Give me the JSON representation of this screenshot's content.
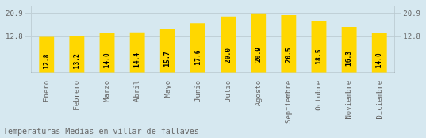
{
  "chart_data": {
    "type": "bar",
    "title": "Temperaturas Medias en villar de fallaves",
    "categories": [
      "Enero",
      "Febrero",
      "Marzo",
      "Abril",
      "Mayo",
      "Junio",
      "Julio",
      "Agosto",
      "Septiembre",
      "Octubre",
      "Noviembre",
      "Diciembre"
    ],
    "values": [
      12.8,
      13.2,
      14.0,
      14.4,
      15.7,
      17.6,
      20.0,
      20.9,
      20.5,
      18.5,
      16.3,
      14.0
    ],
    "value_labels": [
      "12.8",
      "13.2",
      "14.0",
      "14.4",
      "15.7",
      "17.6",
      "20.0",
      "20.9",
      "20.5",
      "18.5",
      "16.3",
      "14.0"
    ],
    "color": "#FFD700",
    "ylim": [
      0,
      23.5
    ],
    "yticks": [
      12.8,
      20.9
    ],
    "y2lim": [
      0,
      23.5
    ],
    "y2ticks": [
      12.8,
      20.9
    ],
    "grid": true,
    "data_labels": true
  }
}
